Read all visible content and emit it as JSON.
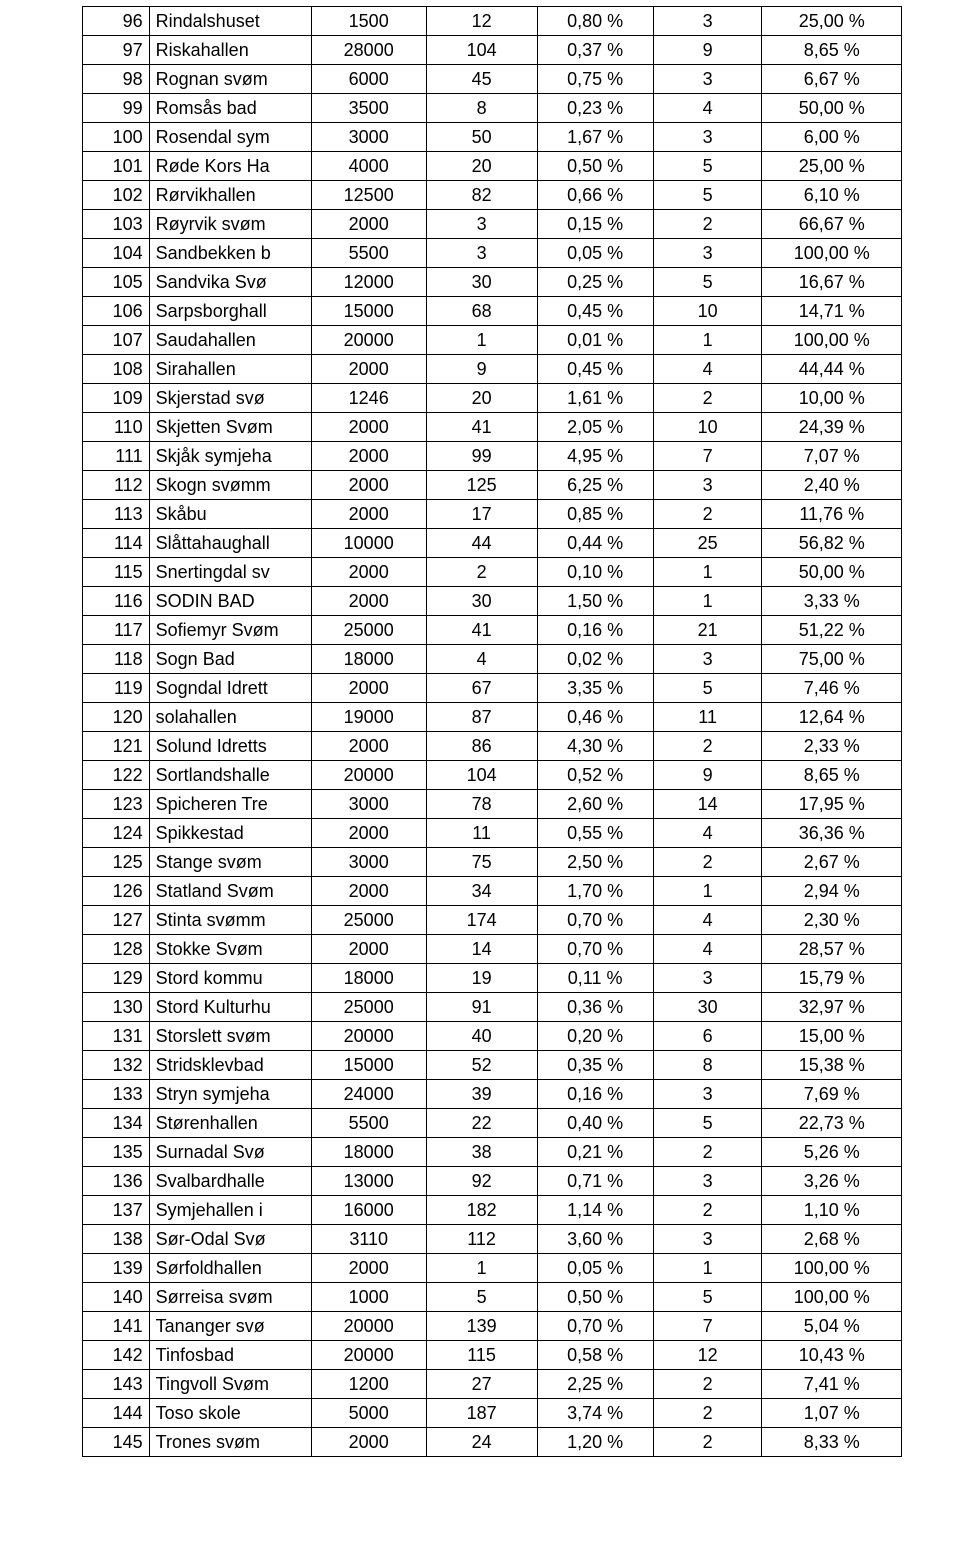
{
  "table": {
    "rows": [
      {
        "n": "96",
        "name": "Rindalshuset",
        "a": "1500",
        "b": "12",
        "c": "0,80 %",
        "d": "3",
        "e": "25,00 %"
      },
      {
        "n": "97",
        "name": "Riskahallen",
        "a": "28000",
        "b": "104",
        "c": "0,37 %",
        "d": "9",
        "e": "8,65 %"
      },
      {
        "n": "98",
        "name": "Rognan svøm",
        "a": "6000",
        "b": "45",
        "c": "0,75 %",
        "d": "3",
        "e": "6,67 %"
      },
      {
        "n": "99",
        "name": "Romsås bad",
        "a": "3500",
        "b": "8",
        "c": "0,23 %",
        "d": "4",
        "e": "50,00 %"
      },
      {
        "n": "100",
        "name": "Rosendal sym",
        "a": "3000",
        "b": "50",
        "c": "1,67 %",
        "d": "3",
        "e": "6,00 %"
      },
      {
        "n": "101",
        "name": "Røde Kors Ha",
        "a": "4000",
        "b": "20",
        "c": "0,50 %",
        "d": "5",
        "e": "25,00 %"
      },
      {
        "n": "102",
        "name": "Rørvikhallen",
        "a": "12500",
        "b": "82",
        "c": "0,66 %",
        "d": "5",
        "e": "6,10 %"
      },
      {
        "n": "103",
        "name": "Røyrvik svøm",
        "a": "2000",
        "b": "3",
        "c": "0,15 %",
        "d": "2",
        "e": "66,67 %"
      },
      {
        "n": "104",
        "name": "Sandbekken b",
        "a": "5500",
        "b": "3",
        "c": "0,05 %",
        "d": "3",
        "e": "100,00 %"
      },
      {
        "n": "105",
        "name": "Sandvika Svø",
        "a": "12000",
        "b": "30",
        "c": "0,25 %",
        "d": "5",
        "e": "16,67 %"
      },
      {
        "n": "106",
        "name": "Sarpsborghall",
        "a": "15000",
        "b": "68",
        "c": "0,45 %",
        "d": "10",
        "e": "14,71 %"
      },
      {
        "n": "107",
        "name": "Saudahallen",
        "a": "20000",
        "b": "1",
        "c": "0,01 %",
        "d": "1",
        "e": "100,00 %"
      },
      {
        "n": "108",
        "name": "Sirahallen",
        "a": "2000",
        "b": "9",
        "c": "0,45 %",
        "d": "4",
        "e": "44,44 %"
      },
      {
        "n": "109",
        "name": "Skjerstad svø",
        "a": "1246",
        "b": "20",
        "c": "1,61 %",
        "d": "2",
        "e": "10,00 %"
      },
      {
        "n": "110",
        "name": "Skjetten Svøm",
        "a": "2000",
        "b": "41",
        "c": "2,05 %",
        "d": "10",
        "e": "24,39 %"
      },
      {
        "n": "111",
        "name": "Skjåk symjeha",
        "a": "2000",
        "b": "99",
        "c": "4,95 %",
        "d": "7",
        "e": "7,07 %"
      },
      {
        "n": "112",
        "name": "Skogn svømm",
        "a": "2000",
        "b": "125",
        "c": "6,25 %",
        "d": "3",
        "e": "2,40 %"
      },
      {
        "n": "113",
        "name": "Skåbu",
        "a": "2000",
        "b": "17",
        "c": "0,85 %",
        "d": "2",
        "e": "11,76 %"
      },
      {
        "n": "114",
        "name": "Slåttahaughall",
        "a": "10000",
        "b": "44",
        "c": "0,44 %",
        "d": "25",
        "e": "56,82 %"
      },
      {
        "n": "115",
        "name": "Snertingdal sv",
        "a": "2000",
        "b": "2",
        "c": "0,10 %",
        "d": "1",
        "e": "50,00 %"
      },
      {
        "n": "116",
        "name": "SODIN BAD",
        "a": "2000",
        "b": "30",
        "c": "1,50 %",
        "d": "1",
        "e": "3,33 %"
      },
      {
        "n": "117",
        "name": "Sofiemyr Svøm",
        "a": "25000",
        "b": "41",
        "c": "0,16 %",
        "d": "21",
        "e": "51,22 %"
      },
      {
        "n": "118",
        "name": "Sogn Bad",
        "a": "18000",
        "b": "4",
        "c": "0,02 %",
        "d": "3",
        "e": "75,00 %"
      },
      {
        "n": "119",
        "name": "Sogndal Idrett",
        "a": "2000",
        "b": "67",
        "c": "3,35 %",
        "d": "5",
        "e": "7,46 %"
      },
      {
        "n": "120",
        "name": "solahallen",
        "a": "19000",
        "b": "87",
        "c": "0,46 %",
        "d": "11",
        "e": "12,64 %"
      },
      {
        "n": "121",
        "name": "Solund Idretts",
        "a": "2000",
        "b": "86",
        "c": "4,30 %",
        "d": "2",
        "e": "2,33 %"
      },
      {
        "n": "122",
        "name": "Sortlandshalle",
        "a": "20000",
        "b": "104",
        "c": "0,52 %",
        "d": "9",
        "e": "8,65 %"
      },
      {
        "n": "123",
        "name": "Spicheren Tre",
        "a": "3000",
        "b": "78",
        "c": "2,60 %",
        "d": "14",
        "e": "17,95 %"
      },
      {
        "n": "124",
        "name": "Spikkestad",
        "a": "2000",
        "b": "11",
        "c": "0,55 %",
        "d": "4",
        "e": "36,36 %"
      },
      {
        "n": "125",
        "name": "Stange svøm",
        "a": "3000",
        "b": "75",
        "c": "2,50 %",
        "d": "2",
        "e": "2,67 %"
      },
      {
        "n": "126",
        "name": "Statland Svøm",
        "a": "2000",
        "b": "34",
        "c": "1,70 %",
        "d": "1",
        "e": "2,94 %"
      },
      {
        "n": "127",
        "name": "Stinta svømm",
        "a": "25000",
        "b": "174",
        "c": "0,70 %",
        "d": "4",
        "e": "2,30 %"
      },
      {
        "n": "128",
        "name": "Stokke Svøm",
        "a": "2000",
        "b": "14",
        "c": "0,70 %",
        "d": "4",
        "e": "28,57 %"
      },
      {
        "n": "129",
        "name": "Stord kommu",
        "a": "18000",
        "b": "19",
        "c": "0,11 %",
        "d": "3",
        "e": "15,79 %"
      },
      {
        "n": "130",
        "name": "Stord Kulturhu",
        "a": "25000",
        "b": "91",
        "c": "0,36 %",
        "d": "30",
        "e": "32,97 %"
      },
      {
        "n": "131",
        "name": "Storslett svøm",
        "a": "20000",
        "b": "40",
        "c": "0,20 %",
        "d": "6",
        "e": "15,00 %"
      },
      {
        "n": "132",
        "name": "Stridsklevbad",
        "a": "15000",
        "b": "52",
        "c": "0,35 %",
        "d": "8",
        "e": "15,38 %"
      },
      {
        "n": "133",
        "name": "Stryn symjeha",
        "a": "24000",
        "b": "39",
        "c": "0,16 %",
        "d": "3",
        "e": "7,69 %"
      },
      {
        "n": "134",
        "name": "Størenhallen",
        "a": "5500",
        "b": "22",
        "c": "0,40 %",
        "d": "5",
        "e": "22,73 %"
      },
      {
        "n": "135",
        "name": "Surnadal Svø",
        "a": "18000",
        "b": "38",
        "c": "0,21 %",
        "d": "2",
        "e": "5,26 %"
      },
      {
        "n": "136",
        "name": "Svalbardhalle",
        "a": "13000",
        "b": "92",
        "c": "0,71 %",
        "d": "3",
        "e": "3,26 %"
      },
      {
        "n": "137",
        "name": "Symjehallen i",
        "a": "16000",
        "b": "182",
        "c": "1,14 %",
        "d": "2",
        "e": "1,10 %"
      },
      {
        "n": "138",
        "name": "Sør-Odal Svø",
        "a": "3110",
        "b": "112",
        "c": "3,60 %",
        "d": "3",
        "e": "2,68 %"
      },
      {
        "n": "139",
        "name": "Sørfoldhallen",
        "a": "2000",
        "b": "1",
        "c": "0,05 %",
        "d": "1",
        "e": "100,00 %"
      },
      {
        "n": "140",
        "name": "Sørreisa svøm",
        "a": "1000",
        "b": "5",
        "c": "0,50 %",
        "d": "5",
        "e": "100,00 %"
      },
      {
        "n": "141",
        "name": "Tananger svø",
        "a": "20000",
        "b": "139",
        "c": "0,70 %",
        "d": "7",
        "e": "5,04 %"
      },
      {
        "n": "142",
        "name": "Tinfosbad",
        "a": "20000",
        "b": "115",
        "c": "0,58 %",
        "d": "12",
        "e": "10,43 %"
      },
      {
        "n": "143",
        "name": "Tingvoll Svøm",
        "a": "1200",
        "b": "27",
        "c": "2,25 %",
        "d": "2",
        "e": "7,41 %"
      },
      {
        "n": "144",
        "name": "Toso skole",
        "a": "5000",
        "b": "187",
        "c": "3,74 %",
        "d": "2",
        "e": "1,07 %"
      },
      {
        "n": "145",
        "name": "Trones svøm",
        "a": "2000",
        "b": "24",
        "c": "1,20 %",
        "d": "2",
        "e": "8,33 %"
      }
    ]
  }
}
